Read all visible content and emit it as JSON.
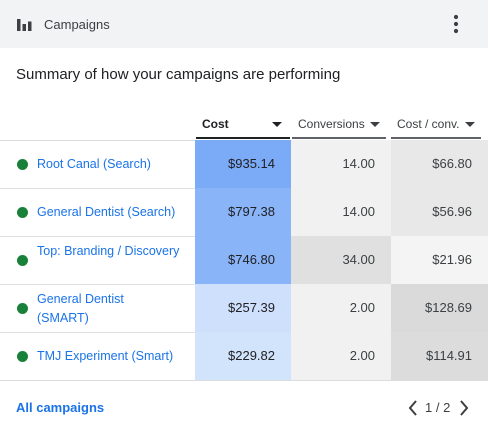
{
  "header": {
    "title": "Campaigns",
    "icon": "bar-chart-icon",
    "menu_icon": "more-vert-icon"
  },
  "summary": "Summary of how your campaigns are performing",
  "table": {
    "columns": [
      {
        "label": "Cost",
        "sorted": true
      },
      {
        "label": "Conversions",
        "sorted": false
      },
      {
        "label": "Cost / conv.",
        "sorted": false
      }
    ],
    "rows": [
      {
        "name": "Root Canal (Search)",
        "status": "enabled",
        "cost": "$935.14",
        "conversions": "14.00",
        "cost_per_conv": "$66.80"
      },
      {
        "name": "General Dentist (Search)",
        "status": "enabled",
        "cost": "$797.38",
        "conversions": "14.00",
        "cost_per_conv": "$56.96"
      },
      {
        "name": "Top: Branding / Discovery",
        "status": "enabled",
        "cost": "$746.80",
        "conversions": "34.00",
        "cost_per_conv": "$21.96"
      },
      {
        "name": "General Dentist (SMART)",
        "status": "enabled",
        "cost": "$257.39",
        "conversions": "2.00",
        "cost_per_conv": "$128.69"
      },
      {
        "name": "TMJ Experiment (Smart)",
        "status": "enabled",
        "cost": "$229.82",
        "conversions": "2.00",
        "cost_per_conv": "$114.91"
      }
    ],
    "heat_colors": {
      "cost": [
        "#7baaf7",
        "#8ab4f8",
        "#8ab4f8",
        "#cfe0fc",
        "#d2e3fc"
      ],
      "conversions": [
        "#f1f1f1",
        "#f1f1f1",
        "#e0e0e0",
        "#f1f1f1",
        "#f1f1f1"
      ],
      "cost_per_conv": [
        "#e8e8e8",
        "#e8e8e8",
        "#f4f4f4",
        "#dadada",
        "#dcdcdc"
      ]
    },
    "status_color": "#188038",
    "link_color": "#1a73e8"
  },
  "footer": {
    "all_campaigns": "All campaigns",
    "page_indicator": "1 / 2"
  }
}
